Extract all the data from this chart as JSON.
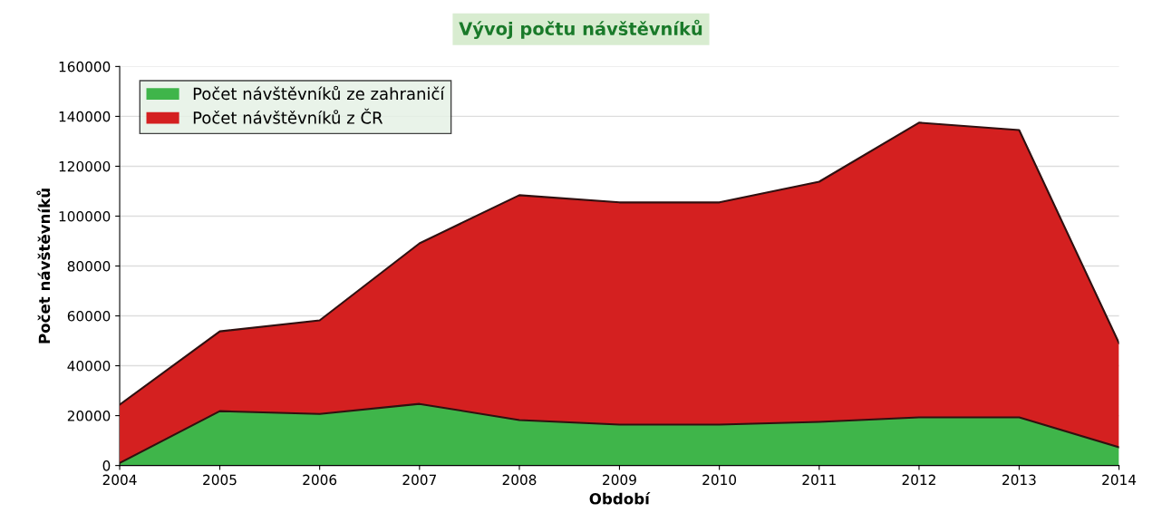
{
  "chart_data": {
    "type": "area",
    "title": "Vývoj počtu návštěvníků",
    "xlabel": "Období",
    "ylabel": "Počet návštěvníků",
    "x": [
      "2004",
      "2005",
      "2006",
      "2007",
      "2008",
      "2009",
      "2010",
      "2011",
      "2012",
      "2013",
      "2014"
    ],
    "stacked": true,
    "series": [
      {
        "name": "Počet návštěvníků ze zahraničí",
        "color": "#3fb54a",
        "values": [
          1000,
          21800,
          20700,
          24700,
          18200,
          16400,
          16400,
          17500,
          19300,
          19300,
          7300
        ]
      },
      {
        "name": "Počet návštěvníků z ČR",
        "color": "#d42020",
        "values": [
          23400,
          32000,
          37500,
          64400,
          90200,
          89100,
          89100,
          96300,
          118200,
          115200,
          41800
        ]
      }
    ],
    "xlim": [
      "2004",
      "2014"
    ],
    "xticks": [
      "2004",
      "2005",
      "2006",
      "2007",
      "2008",
      "2009",
      "2010",
      "2011",
      "2012",
      "2013",
      "2014"
    ],
    "ylim": [
      0,
      160000
    ],
    "yticks": [
      0,
      20000,
      40000,
      60000,
      80000,
      100000,
      120000,
      140000,
      160000
    ],
    "grid": "y",
    "legend": "top left"
  }
}
